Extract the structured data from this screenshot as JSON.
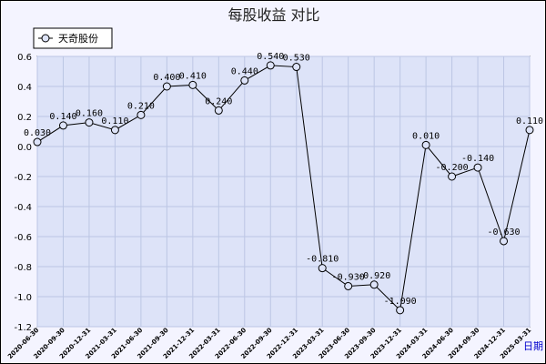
{
  "chart_data": {
    "type": "line",
    "title": "每股收益  对比",
    "xlabel": "",
    "ylabel": "",
    "ylim": [
      -1.2,
      0.6
    ],
    "yticks": [
      0.6,
      0.4,
      0.2,
      0.0,
      -0.2,
      -0.4,
      -0.6,
      -0.8,
      -1.0,
      -1.2
    ],
    "ytick_labels": [
      "0.6",
      "0.4",
      "0.2",
      "0.0",
      "-0.2",
      "-0.4",
      "-0.6",
      "-0.8",
      "-1.0",
      "-1.2"
    ],
    "categories": [
      "2020-06-30",
      "2020-09-30",
      "2020-12-31",
      "2021-03-31",
      "2021-06-30",
      "2021-09-30",
      "2021-12-31",
      "2022-03-31",
      "2022-06-30",
      "2022-09-30",
      "2022-12-31",
      "2023-03-31",
      "2023-06-30",
      "2023-09-30",
      "2023-12-31",
      "2024-03-31",
      "2024-06-30",
      "2024-09-30",
      "2024-12-31",
      "2025-03-31"
    ],
    "series": [
      {
        "name": "天奇股份",
        "values": [
          0.03,
          0.14,
          0.16,
          0.11,
          0.21,
          0.4,
          0.41,
          0.24,
          0.44,
          0.54,
          0.53,
          -0.81,
          -0.93,
          -0.92,
          -1.09,
          0.01,
          -0.2,
          -0.14,
          -0.63,
          0.11
        ],
        "labels": [
          "0.030",
          "0.140",
          "0.160",
          "0.110",
          "0.210",
          "0.400",
          "0.410",
          "0.240",
          "0.440",
          "0.540",
          "0.530",
          "-0.810",
          "-0.930",
          "-0.920",
          "-1.090",
          "0.010",
          "-0.200",
          "-0.140",
          "-0.630",
          "0.110"
        ]
      }
    ],
    "grid": true,
    "legend_position": "top-left",
    "period_label": "日期",
    "colors": {
      "plot_bg": "#dde3f8",
      "page_bg": "#f4f4ff",
      "grid": "#bcc6e4",
      "line": "#000000"
    }
  }
}
